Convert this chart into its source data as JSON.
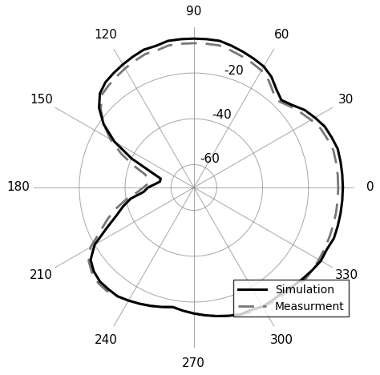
{
  "title": "",
  "rlim": [
    -70,
    0
  ],
  "rticks": [
    -60,
    -40,
    -20
  ],
  "legend_labels": [
    "Simulation",
    "Measurment"
  ],
  "sim_color": "#000000",
  "meas_color": "#777777",
  "background_color": "#ffffff",
  "sim_linewidth": 2.2,
  "meas_linewidth": 2.0,
  "sim_angles_deg": [
    0,
    5,
    10,
    15,
    20,
    25,
    30,
    35,
    40,
    45,
    50,
    55,
    60,
    65,
    70,
    75,
    80,
    85,
    90,
    95,
    100,
    105,
    110,
    115,
    120,
    125,
    130,
    135,
    140,
    145,
    150,
    155,
    160,
    165,
    170,
    175,
    180,
    185,
    190,
    195,
    200,
    205,
    210,
    215,
    220,
    225,
    230,
    235,
    240,
    245,
    250,
    255,
    260,
    265,
    270,
    275,
    280,
    285,
    290,
    295,
    300,
    305,
    310,
    315,
    320,
    325,
    330,
    335,
    340,
    345,
    350,
    355,
    360
  ],
  "sim_r_db": [
    -5,
    -5,
    -5,
    -5,
    -6,
    -7,
    -9,
    -11,
    -14,
    -16,
    -14,
    -11,
    -9,
    -8,
    -7,
    -6,
    -5,
    -5,
    -5,
    -5,
    -5,
    -6,
    -6,
    -7,
    -8,
    -9,
    -10,
    -12,
    -16,
    -22,
    -30,
    -40,
    -50,
    -55,
    -55,
    -53,
    -50,
    -48,
    -42,
    -38,
    -34,
    -28,
    -20,
    -15,
    -13,
    -12,
    -12,
    -12,
    -13,
    -14,
    -15,
    -16,
    -17,
    -16,
    -15,
    -14,
    -13,
    -12,
    -11,
    -11,
    -10,
    -10,
    -10,
    -9,
    -8,
    -7,
    -6,
    -6,
    -5,
    -5,
    -5,
    -5,
    -5
  ],
  "meas_angles_deg": [
    0,
    5,
    10,
    15,
    20,
    25,
    30,
    35,
    40,
    45,
    50,
    55,
    60,
    65,
    70,
    75,
    80,
    85,
    90,
    95,
    100,
    105,
    110,
    115,
    120,
    125,
    130,
    135,
    140,
    145,
    150,
    155,
    160,
    165,
    170,
    175,
    180,
    185,
    190,
    195,
    200,
    205,
    210,
    215,
    220,
    225,
    230,
    235,
    240,
    245,
    250,
    255,
    260,
    265,
    270,
    275,
    280,
    285,
    290,
    295,
    300,
    305,
    310,
    315,
    320,
    325,
    330,
    335,
    340,
    345,
    350,
    355,
    360
  ],
  "meas_r_db": [
    -7,
    -7,
    -7,
    -7,
    -8,
    -9,
    -11,
    -13,
    -15,
    -17,
    -16,
    -13,
    -11,
    -10,
    -9,
    -8,
    -7,
    -7,
    -7,
    -7,
    -7,
    -8,
    -8,
    -9,
    -10,
    -11,
    -12,
    -13,
    -17,
    -22,
    -28,
    -35,
    -42,
    -48,
    -50,
    -50,
    -48,
    -45,
    -40,
    -35,
    -30,
    -25,
    -18,
    -14,
    -12,
    -11,
    -11,
    -12,
    -13,
    -14,
    -15,
    -16,
    -17,
    -16,
    -15,
    -14,
    -13,
    -12,
    -11,
    -10,
    -10,
    -9,
    -9,
    -8,
    -7,
    -7,
    -7,
    -7,
    -7,
    -7,
    -7,
    -7,
    -7
  ]
}
